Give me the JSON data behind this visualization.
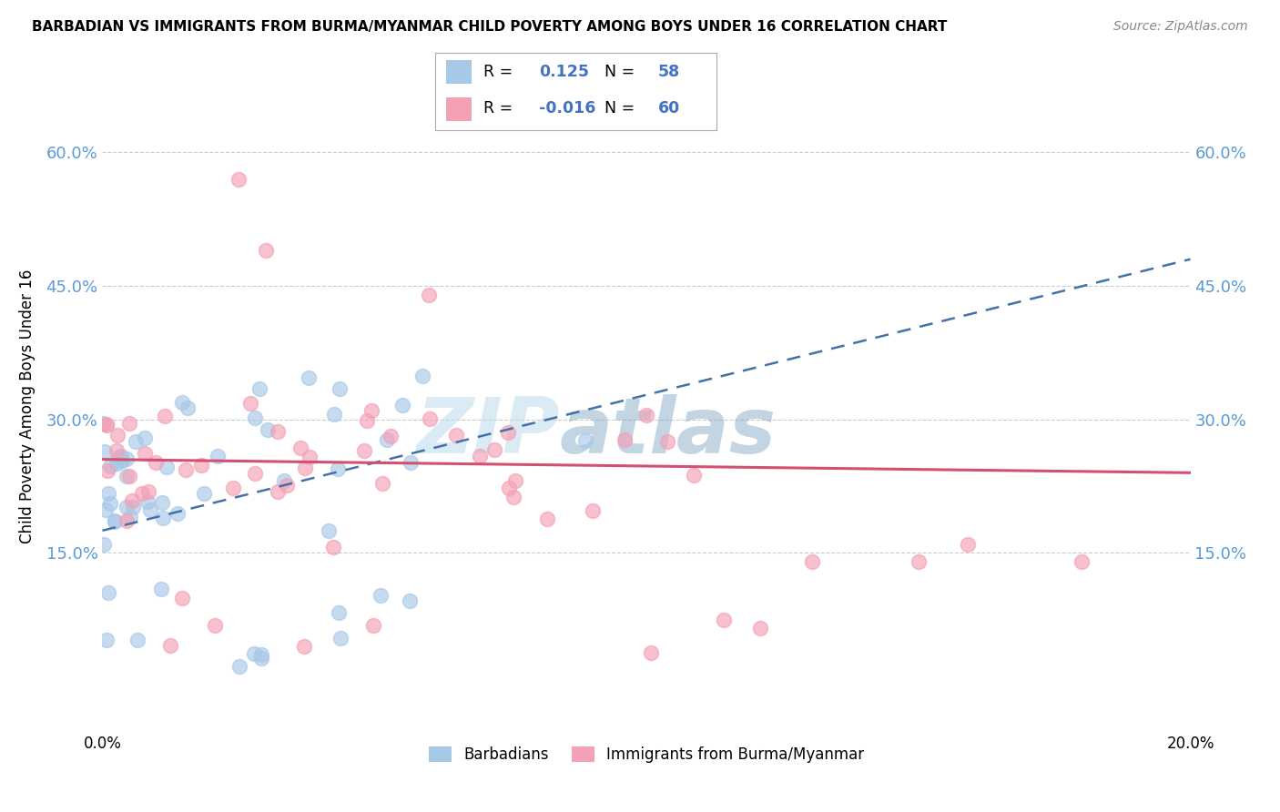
{
  "title": "BARBADIAN VS IMMIGRANTS FROM BURMA/MYANMAR CHILD POVERTY AMONG BOYS UNDER 16 CORRELATION CHART",
  "source": "Source: ZipAtlas.com",
  "ylabel": "Child Poverty Among Boys Under 16",
  "ytick_labels": [
    "60.0%",
    "45.0%",
    "30.0%",
    "15.0%"
  ],
  "ytick_values": [
    0.6,
    0.45,
    0.3,
    0.15
  ],
  "xlim": [
    0.0,
    0.2
  ],
  "ylim": [
    -0.05,
    0.68
  ],
  "blue_color": "#a8c8e8",
  "pink_color": "#f4a0b5",
  "blue_line_color": "#4472a8",
  "pink_line_color": "#d45070",
  "grid_color": "#cccccc",
  "watermark_zip": "ZIP",
  "watermark_atlas": "atlas",
  "barbadian_R": 0.125,
  "barbadian_N": 58,
  "burma_R": -0.016,
  "burma_N": 60,
  "blue_line_x0": 0.0,
  "blue_line_x1": 0.2,
  "blue_line_y0": 0.175,
  "blue_line_y1": 0.48,
  "pink_line_x0": 0.0,
  "pink_line_x1": 0.2,
  "pink_line_y0": 0.255,
  "pink_line_y1": 0.24
}
